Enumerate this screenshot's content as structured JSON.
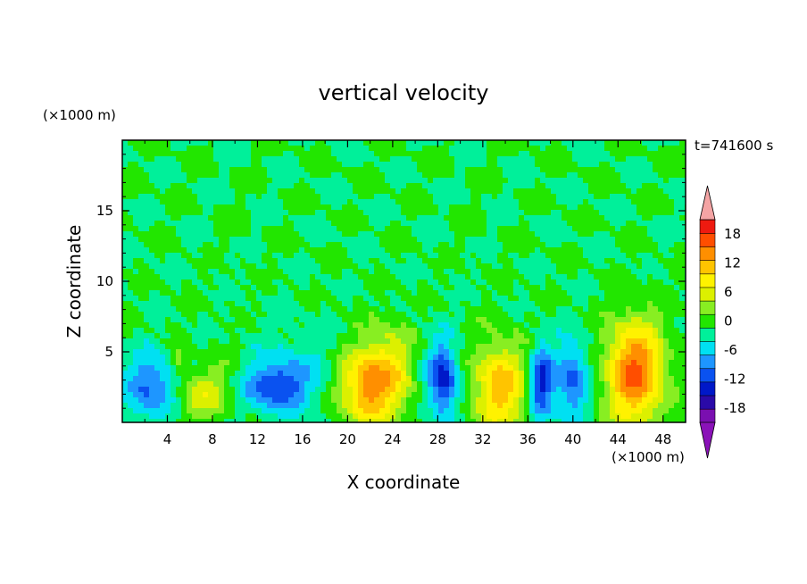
{
  "chart_data": {
    "type": "heatmap",
    "title": "vertical velocity",
    "xlabel": "X coordinate",
    "ylabel": "Z coordinate",
    "x_unit": "(×1000 m)",
    "y_unit": "(×1000 m)",
    "time_label": "t=741600 s",
    "xlim": [
      0,
      50
    ],
    "ylim": [
      0,
      20
    ],
    "x_ticks": [
      4,
      8,
      12,
      16,
      20,
      24,
      28,
      32,
      36,
      40,
      44,
      48
    ],
    "x_tick_labels": [
      "4",
      "8",
      "12",
      "16",
      "20",
      "24",
      "28",
      "32",
      "36",
      "40",
      "44",
      "48"
    ],
    "y_ticks": [
      5,
      10,
      15
    ],
    "y_tick_labels": [
      "5",
      "10",
      "15"
    ],
    "colorbar": {
      "levels": [
        -21,
        -18,
        -15,
        -12,
        -9,
        -6,
        -3,
        0,
        3,
        6,
        9,
        12,
        15,
        18,
        21
      ],
      "tick_values": [
        -18,
        -12,
        -6,
        0,
        6,
        12,
        18
      ],
      "tick_labels": [
        "-18",
        "-12",
        "-6",
        "0",
        "6",
        "12",
        "18"
      ],
      "colors": [
        "#7a0fb0",
        "#2a0aa8",
        "#0018c8",
        "#0a52f0",
        "#1e96ff",
        "#00e0f2",
        "#00f09a",
        "#22e600",
        "#88ee22",
        "#dcf000",
        "#fff200",
        "#ffc400",
        "#ff8f00",
        "#ff4e00",
        "#ee1a10"
      ],
      "under_color": "#8a12b8",
      "over_color": "#f4a4a4"
    },
    "features": [
      {
        "x": 2.5,
        "z": 2.5,
        "value": -10,
        "sx": 1.6,
        "sz": 1.6
      },
      {
        "x": 5.0,
        "z": 4.5,
        "value": 6,
        "sx": 0.5,
        "sz": 0.7
      },
      {
        "x": 7.0,
        "z": 1.8,
        "value": 7,
        "sx": 1.6,
        "sz": 1.3
      },
      {
        "x": 9.0,
        "z": 3.2,
        "value": 2,
        "sx": 1.5,
        "sz": 1.5
      },
      {
        "x": 13.5,
        "z": 2.5,
        "value": -11,
        "sx": 2.0,
        "sz": 1.2
      },
      {
        "x": 15.5,
        "z": 4.0,
        "value": -3,
        "sx": 2.5,
        "sz": 2.0
      },
      {
        "x": 21.5,
        "z": 2.5,
        "value": 14,
        "sx": 1.6,
        "sz": 2.0
      },
      {
        "x": 24.0,
        "z": 3.5,
        "value": 10,
        "sx": 1.6,
        "sz": 2.2
      },
      {
        "x": 28.5,
        "z": 3.0,
        "value": -13,
        "sx": 0.9,
        "sz": 1.8
      },
      {
        "x": 26.5,
        "z": 3.5,
        "value": -2,
        "sx": 2.0,
        "sz": 2.0
      },
      {
        "x": 33.5,
        "z": 2.5,
        "value": 14,
        "sx": 1.7,
        "sz": 2.2
      },
      {
        "x": 37.2,
        "z": 2.8,
        "value": -14,
        "sx": 0.8,
        "sz": 1.8
      },
      {
        "x": 40.0,
        "z": 3.0,
        "value": -10,
        "sx": 1.0,
        "sz": 2.0
      },
      {
        "x": 45.5,
        "z": 3.5,
        "value": 19,
        "sx": 1.8,
        "sz": 2.6
      }
    ]
  }
}
